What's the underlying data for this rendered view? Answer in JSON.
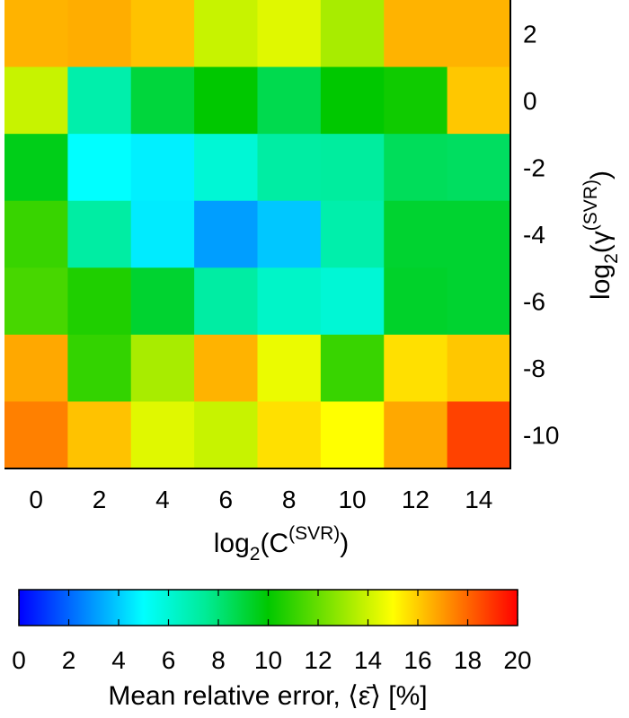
{
  "chart_data": {
    "type": "heatmap",
    "x": [
      0,
      2,
      4,
      6,
      8,
      10,
      12,
      14
    ],
    "y": [
      2,
      0,
      -2,
      -4,
      -6,
      -8,
      -10
    ],
    "xlabel": {
      "base": "log",
      "sub": "2",
      "open": "(C",
      "sup": "(SVR)",
      "close": ")"
    },
    "ylabel": {
      "base": "log",
      "sub": "2",
      "open": "(γ",
      "sup": "(SVR)",
      "close": ")"
    },
    "values": [
      [
        16.5,
        16.6,
        16.2,
        13.9,
        14.4,
        13.3,
        16.5,
        16.5
      ],
      [
        13.9,
        7.0,
        9.0,
        10.0,
        8.7,
        10.0,
        10.3,
        16.1
      ],
      [
        9.6,
        5.0,
        4.7,
        6.0,
        7.2,
        7.3,
        8.5,
        8.4
      ],
      [
        11.1,
        7.2,
        4.6,
        3.1,
        3.9,
        7.0,
        9.2,
        9.2
      ],
      [
        11.4,
        10.6,
        9.2,
        7.2,
        6.3,
        6.0,
        9.3,
        9.2
      ],
      [
        16.7,
        11.0,
        13.3,
        16.5,
        14.6,
        11.1,
        15.6,
        16.1
      ],
      [
        17.5,
        16.2,
        14.4,
        13.9,
        15.6,
        15.0,
        16.7,
        18.7
      ]
    ],
    "colorbar": {
      "range": [
        0,
        20
      ],
      "ticks": [
        "0",
        "2",
        "4",
        "6",
        "8",
        "10",
        "12",
        "14",
        "16",
        "18",
        "20"
      ],
      "label": "Mean relative error, ⟨ε̄⟩ [%]",
      "colormap_stops": [
        {
          "v": 0,
          "c": "#0000ff"
        },
        {
          "v": 5,
          "c": "#00ffff"
        },
        {
          "v": 7.5,
          "c": "#00eb96"
        },
        {
          "v": 10,
          "c": "#00c800"
        },
        {
          "v": 15,
          "c": "#ffff00"
        },
        {
          "v": 20,
          "c": "#ff0000"
        }
      ]
    }
  }
}
